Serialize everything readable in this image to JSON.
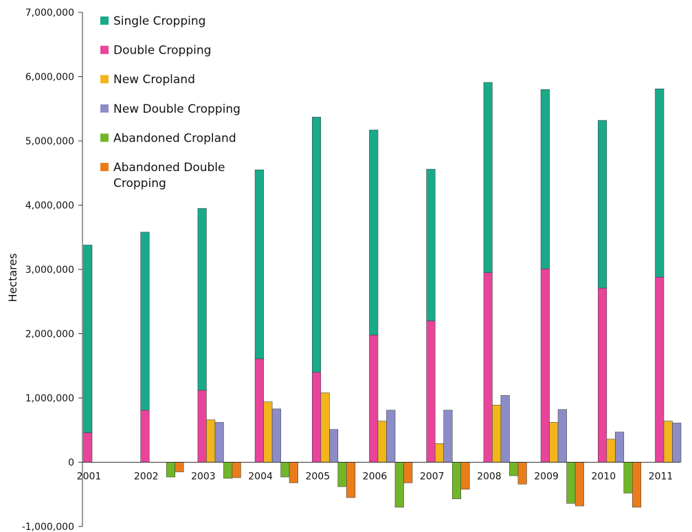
{
  "chart_data": {
    "type": "bar",
    "title": "",
    "xlabel": "",
    "ylabel": "Hectares",
    "ylim": [
      -1000000,
      7000000
    ],
    "yticks": [
      "7,000,000",
      "6,000,000",
      "5,000,000",
      "4,000,000",
      "3,000,000",
      "2,000,000",
      "1,000,000",
      "0",
      "-1,000,000"
    ],
    "grid": false,
    "legend_position": "top-left",
    "categories": [
      "2001",
      "2002",
      "2003",
      "2004",
      "2005",
      "2006",
      "2007",
      "2008",
      "2009",
      "2010",
      "2011"
    ],
    "series": [
      {
        "name": "Single Cropping",
        "stacked_on": "Double Cropping",
        "values": [
          2920000,
          2770000,
          2830000,
          2940000,
          3970000,
          3190000,
          2360000,
          2960000,
          2790000,
          2610000,
          2930000
        ]
      },
      {
        "name": "Double Cropping",
        "values": [
          460000,
          810000,
          1120000,
          1610000,
          1400000,
          1980000,
          2200000,
          2950000,
          3010000,
          2710000,
          2880000
        ]
      },
      {
        "name": "New Cropland",
        "values": [
          0,
          0,
          660000,
          940000,
          1080000,
          640000,
          290000,
          890000,
          620000,
          360000,
          640000
        ]
      },
      {
        "name": "New Double Cropping",
        "values": [
          0,
          0,
          620000,
          830000,
          510000,
          810000,
          810000,
          1040000,
          820000,
          470000,
          610000
        ]
      },
      {
        "name": "Abandoned Cropland",
        "values": [
          0,
          -230000,
          -250000,
          -230000,
          -380000,
          -700000,
          -570000,
          -210000,
          -640000,
          -480000,
          0
        ]
      },
      {
        "name": "Abandoned Double Cropping",
        "values": [
          0,
          -150000,
          -240000,
          -320000,
          -550000,
          -320000,
          -420000,
          -340000,
          -680000,
          -700000,
          0
        ]
      }
    ],
    "colors": {
      "Single Cropping": "#1aaa8a",
      "Double Cropping": "#e8449a",
      "New Cropland": "#f2b51c",
      "New Double Cropping": "#8c8cc8",
      "Abandoned Cropland": "#72b529",
      "Abandoned Double Cropping": "#ea7d1a"
    },
    "legend": [
      "Single Cropping",
      "Double Cropping",
      "New Cropland",
      "New Double Cropping",
      "Abandoned Cropland",
      "Abandoned Double\nCropping"
    ]
  }
}
